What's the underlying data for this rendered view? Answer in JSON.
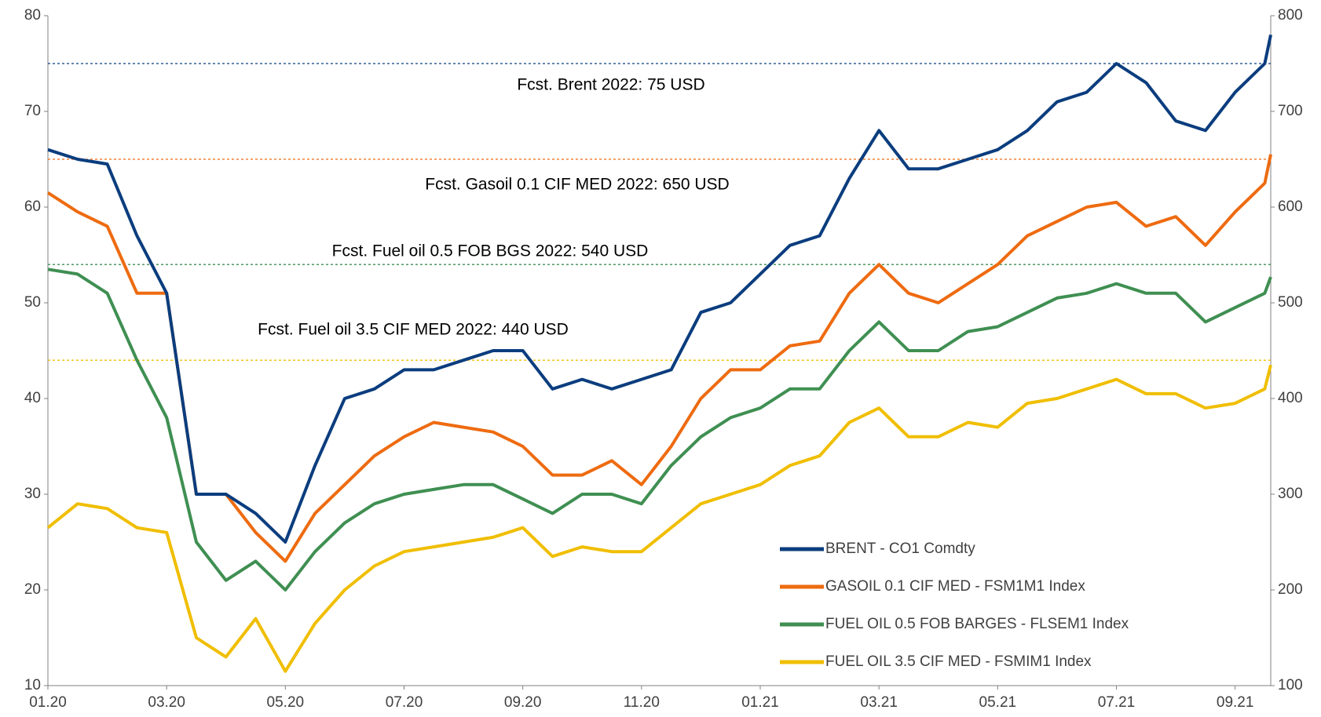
{
  "chart_data": {
    "type": "line",
    "x": [
      0,
      0.5,
      1,
      1.5,
      2,
      2.5,
      3,
      3.5,
      4,
      4.5,
      5,
      5.5,
      6,
      6.5,
      7,
      7.5,
      8,
      8.5,
      9,
      9.5,
      10,
      10.5,
      11,
      11.5,
      12,
      12.5,
      13,
      13.5,
      14,
      14.5,
      15,
      15.5,
      16,
      16.5,
      17,
      17.5,
      18,
      18.5,
      19,
      19.5,
      20,
      20.5,
      20.6
    ],
    "xlim": [
      0,
      20.6
    ],
    "xticks": [
      {
        "value": 0,
        "label": "01.20"
      },
      {
        "value": 2,
        "label": "03.20"
      },
      {
        "value": 4,
        "label": "05.20"
      },
      {
        "value": 6,
        "label": "07.20"
      },
      {
        "value": 8,
        "label": "09.20"
      },
      {
        "value": 10,
        "label": "11.20"
      },
      {
        "value": 12,
        "label": "01.21"
      },
      {
        "value": 14,
        "label": "03.21"
      },
      {
        "value": 16,
        "label": "05.21"
      },
      {
        "value": 18,
        "label": "07.21"
      },
      {
        "value": 20,
        "label": "09.21"
      }
    ],
    "ylim": [
      10,
      80
    ],
    "yticks": [
      10,
      20,
      30,
      40,
      50,
      60,
      70,
      80
    ],
    "y2lim": [
      100,
      800
    ],
    "y2ticks": [
      100,
      200,
      300,
      400,
      500,
      600,
      700,
      800
    ],
    "series": [
      {
        "name": "BRENT - CO1 Comdty",
        "color": "#0b3d7e",
        "axis": "y",
        "values": [
          66,
          65,
          64.5,
          57,
          51,
          30,
          30,
          28,
          25,
          33,
          40,
          41,
          43,
          43,
          44,
          45,
          45,
          41,
          42,
          41,
          42,
          43,
          49,
          50,
          53,
          56,
          57,
          63,
          68,
          64,
          64,
          65,
          66,
          68,
          71,
          72,
          75,
          73,
          69,
          68,
          72,
          75,
          78
        ]
      },
      {
        "name": "GASOIL 0.1 CIF MED - FSM1M1 Index",
        "color": "#ee6b10",
        "axis": "y2",
        "values": [
          615,
          595,
          580,
          510,
          510,
          300,
          300,
          260,
          230,
          280,
          310,
          340,
          360,
          375,
          370,
          365,
          350,
          320,
          320,
          335,
          310,
          350,
          400,
          430,
          430,
          455,
          460,
          510,
          540,
          510,
          500,
          520,
          540,
          570,
          585,
          600,
          605,
          580,
          590,
          560,
          595,
          625,
          655
        ]
      },
      {
        "name": "FUEL OIL 0.5 FOB BARGES - FLSEM1 Index",
        "color": "#3f8f52",
        "axis": "y2",
        "values": [
          535,
          530,
          510,
          440,
          380,
          250,
          210,
          230,
          200,
          240,
          270,
          290,
          300,
          305,
          310,
          310,
          295,
          280,
          300,
          300,
          290,
          330,
          360,
          380,
          390,
          410,
          410,
          450,
          480,
          450,
          450,
          470,
          475,
          490,
          505,
          510,
          520,
          510,
          510,
          480,
          495,
          510,
          527
        ]
      },
      {
        "name": "FUEL OIL 3.5 CIF MED - FSMIM1 Index",
        "color": "#f0be00",
        "axis": "y2",
        "values": [
          265,
          290,
          285,
          265,
          260,
          150,
          130,
          170,
          115,
          165,
          200,
          225,
          240,
          245,
          250,
          255,
          265,
          235,
          245,
          240,
          240,
          265,
          290,
          300,
          310,
          330,
          340,
          375,
          390,
          360,
          360,
          375,
          370,
          395,
          400,
          410,
          420,
          405,
          405,
          390,
          395,
          410,
          435
        ]
      }
    ],
    "reference_lines": [
      {
        "label": "Fcst. Brent 2022: 75 USD",
        "value": 75,
        "axis": "y",
        "color": "#0b3d7e"
      },
      {
        "label": "Fcst. Gasoil 0.1 CIF MED 2022: 650 USD",
        "value": 650,
        "axis": "y2",
        "color": "#ee6b10"
      },
      {
        "label": "Fcst. Fuel oil 0.5 FOB BGS 2022: 540 USD",
        "value": 540,
        "axis": "y2",
        "color": "#3f8f52"
      },
      {
        "label": "Fcst. Fuel oil 3.5 CIF MED 2022: 440 USD",
        "value": 440,
        "axis": "y2",
        "color": "#f0be00"
      }
    ],
    "legend": "lower right"
  }
}
